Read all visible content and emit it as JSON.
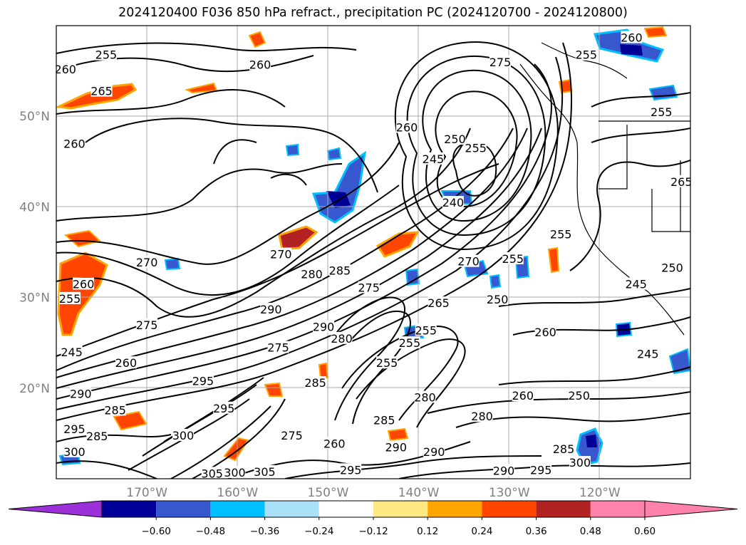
{
  "title": "2024120400 F036 850 hPa refract., precipitation PC (2024120700 - 2024120800)",
  "map": {
    "lat_labels": [
      "50°N",
      "40°N",
      "30°N",
      "20°N"
    ],
    "lon_labels": [
      "170°W",
      "160°W",
      "150°W",
      "140°W",
      "130°W",
      "120°W"
    ],
    "lat_range": [
      10,
      60
    ],
    "lon_range": [
      -180,
      -110
    ],
    "gridlines": true,
    "contour_labels": [
      {
        "text": "255",
        "lat": 56.8,
        "lon": -174.5
      },
      {
        "text": "260",
        "lat": 55.2,
        "lon": -179.0
      },
      {
        "text": "265",
        "lat": 52.8,
        "lon": -175.0
      },
      {
        "text": "260",
        "lat": 55.7,
        "lon": -157.5
      },
      {
        "text": "260",
        "lat": 47.0,
        "lon": -178.0
      },
      {
        "text": "270",
        "lat": 33.9,
        "lon": -170.0
      },
      {
        "text": "260",
        "lat": 31.5,
        "lon": -177.0
      },
      {
        "text": "255",
        "lat": 29.9,
        "lon": -178.5
      },
      {
        "text": "270",
        "lat": 34.8,
        "lon": -155.2
      },
      {
        "text": "280",
        "lat": 32.6,
        "lon": -151.8
      },
      {
        "text": "285",
        "lat": 33.0,
        "lon": -148.7
      },
      {
        "text": "275",
        "lat": 31.1,
        "lon": -145.5
      },
      {
        "text": "290",
        "lat": 28.7,
        "lon": -156.3
      },
      {
        "text": "275",
        "lat": 27.0,
        "lon": -170.0
      },
      {
        "text": "290",
        "lat": 26.8,
        "lon": -150.5
      },
      {
        "text": "275",
        "lat": 24.5,
        "lon": -155.5
      },
      {
        "text": "280",
        "lat": 25.5,
        "lon": -148.5
      },
      {
        "text": "245",
        "lat": 24.0,
        "lon": -178.3
      },
      {
        "text": "260",
        "lat": 22.8,
        "lon": -172.3
      },
      {
        "text": "290",
        "lat": 19.4,
        "lon": -177.3
      },
      {
        "text": "285",
        "lat": 17.6,
        "lon": -173.5
      },
      {
        "text": "295",
        "lat": 15.5,
        "lon": -178.0
      },
      {
        "text": "285",
        "lat": 14.7,
        "lon": -175.5
      },
      {
        "text": "300",
        "lat": 13.0,
        "lon": -178.0
      },
      {
        "text": "295",
        "lat": 20.8,
        "lon": -163.8
      },
      {
        "text": "295",
        "lat": 17.8,
        "lon": -161.5
      },
      {
        "text": "300",
        "lat": 14.8,
        "lon": -166.0
      },
      {
        "text": "285",
        "lat": 20.6,
        "lon": -151.4
      },
      {
        "text": "275",
        "lat": 14.8,
        "lon": -154.0
      },
      {
        "text": "260",
        "lat": 13.9,
        "lon": -149.3
      },
      {
        "text": "305",
        "lat": 10.6,
        "lon": -162.8
      },
      {
        "text": "300",
        "lat": 10.7,
        "lon": -160.3
      },
      {
        "text": "305",
        "lat": 10.8,
        "lon": -157.0
      },
      {
        "text": "295",
        "lat": 11.0,
        "lon": -147.5
      },
      {
        "text": "255",
        "lat": 22.8,
        "lon": -143.5
      },
      {
        "text": "255",
        "lat": 25.0,
        "lon": -141.0
      },
      {
        "text": "255",
        "lat": 26.4,
        "lon": -139.2
      },
      {
        "text": "280",
        "lat": 19.0,
        "lon": -139.3
      },
      {
        "text": "285",
        "lat": 16.5,
        "lon": -143.8
      },
      {
        "text": "290",
        "lat": 13.5,
        "lon": -142.5
      },
      {
        "text": "290",
        "lat": 13.0,
        "lon": -138.3
      },
      {
        "text": "265",
        "lat": 29.4,
        "lon": -137.8
      },
      {
        "text": "270",
        "lat": 34.0,
        "lon": -134.5
      },
      {
        "text": "250",
        "lat": 29.8,
        "lon": -131.3
      },
      {
        "text": "255",
        "lat": 34.3,
        "lon": -129.6
      },
      {
        "text": "260",
        "lat": 26.2,
        "lon": -126.0
      },
      {
        "text": "260",
        "lat": 19.2,
        "lon": -128.5
      },
      {
        "text": "250",
        "lat": 19.2,
        "lon": -122.3
      },
      {
        "text": "280",
        "lat": 16.9,
        "lon": -133.0
      },
      {
        "text": "290",
        "lat": 10.9,
        "lon": -130.6
      },
      {
        "text": "295",
        "lat": 11.0,
        "lon": -126.5
      },
      {
        "text": "300",
        "lat": 11.8,
        "lon": -122.2
      },
      {
        "text": "285",
        "lat": 13.3,
        "lon": -124.0
      },
      {
        "text": "245",
        "lat": 45.3,
        "lon": -138.4
      },
      {
        "text": "250",
        "lat": 47.5,
        "lon": -136.0
      },
      {
        "text": "255",
        "lat": 46.5,
        "lon": -133.7
      },
      {
        "text": "240",
        "lat": 40.5,
        "lon": -136.2
      },
      {
        "text": "260",
        "lat": 48.8,
        "lon": -141.3
      },
      {
        "text": "275",
        "lat": 56.0,
        "lon": -131.0
      },
      {
        "text": "255",
        "lat": 56.8,
        "lon": -121.5
      },
      {
        "text": "260",
        "lat": 58.7,
        "lon": -116.5
      },
      {
        "text": "255",
        "lat": 37.0,
        "lon": -124.3
      },
      {
        "text": "245",
        "lat": 31.5,
        "lon": -116.0
      },
      {
        "text": "245",
        "lat": 23.8,
        "lon": -114.7
      },
      {
        "text": "250",
        "lat": 33.3,
        "lon": -112.0
      },
      {
        "text": "265",
        "lat": 42.8,
        "lon": -111.0
      },
      {
        "text": "255",
        "lat": 50.5,
        "lon": -113.2
      }
    ]
  },
  "colorbar": {
    "tick_labels": [
      "−0.60",
      "−0.48",
      "−0.36",
      "−0.24",
      "−0.12",
      "0.12",
      "0.24",
      "0.36",
      "0.48",
      "0.60"
    ],
    "colors": [
      "#9b30d9",
      "#000096",
      "#3858d0",
      "#00bfff",
      "#aae1fa",
      "#ffffff",
      "#fde883",
      "#ffa500",
      "#ff4500",
      "#b22222",
      "#ff82ab",
      "#ff82ab"
    ]
  },
  "chart_data": {
    "type": "heatmap",
    "title": "2024120400 F036 850 hPa refract., precipitation PC (2024120700 - 2024120800)",
    "xlabel": "",
    "ylabel": "",
    "x_ticks": [
      "170°W",
      "160°W",
      "150°W",
      "140°W",
      "130°W",
      "120°W"
    ],
    "y_ticks": [
      "50°N",
      "40°N",
      "30°N",
      "20°N"
    ],
    "color_levels": [
      -0.72,
      -0.6,
      -0.48,
      -0.36,
      -0.24,
      -0.12,
      0.12,
      0.24,
      0.36,
      0.48,
      0.6,
      0.72
    ],
    "colorbar_extend": "both",
    "regions": [
      {
        "lat": 52.5,
        "lon": -175.5,
        "value": 0.4
      },
      {
        "lat": 54.5,
        "lon": -170.5,
        "value": 0.3
      },
      {
        "lat": 53.4,
        "lon": -163.5,
        "value": 0.36
      },
      {
        "lat": 57.3,
        "lon": -156.5,
        "value": 0.38
      },
      {
        "lat": 36.0,
        "lon": -176.5,
        "value": 0.4
      },
      {
        "lat": 31.5,
        "lon": -178.0,
        "value": 0.45
      },
      {
        "lat": 35.0,
        "lon": -151.5,
        "value": 0.5
      },
      {
        "lat": 36.0,
        "lon": -141.5,
        "value": 0.45
      },
      {
        "lat": 17.5,
        "lon": -172.0,
        "value": 0.3
      },
      {
        "lat": 13.5,
        "lon": -160.0,
        "value": 0.4
      },
      {
        "lat": 20.0,
        "lon": -156.5,
        "value": 0.35
      },
      {
        "lat": 23.5,
        "lon": -150.0,
        "value": 0.35
      },
      {
        "lat": 41.0,
        "lon": -147.5,
        "value": -0.5
      },
      {
        "lat": 43.5,
        "lon": -146.0,
        "value": -0.4
      },
      {
        "lat": 40.0,
        "lon": -136.5,
        "value": -0.4
      },
      {
        "lat": 31.5,
        "lon": -134.0,
        "value": -0.4
      },
      {
        "lat": 31.0,
        "lon": -131.0,
        "value": -0.3
      },
      {
        "lat": 58.0,
        "lon": -116.0,
        "value": -0.5
      },
      {
        "lat": 12.5,
        "lon": -121.0,
        "value": -0.55
      },
      {
        "lat": 25.5,
        "lon": -139.0,
        "value": -0.4
      }
    ]
  }
}
